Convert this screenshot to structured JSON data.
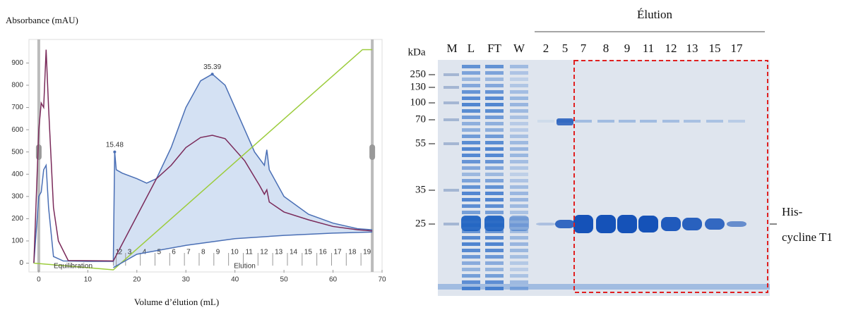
{
  "chart_data": {
    "type": "line",
    "ylabel": "Absorbance (mAU)",
    "xlabel": "Volume d’élution (mL)",
    "xlim": [
      -2,
      70
    ],
    "xticks": [
      0,
      10,
      20,
      30,
      40,
      50,
      60,
      70
    ],
    "ylim": [
      -30,
      990
    ],
    "yticks": [
      0,
      100,
      200,
      300,
      400,
      500,
      600,
      700,
      800,
      900
    ],
    "series": [
      {
        "color": "#4a6fb5",
        "x": [
          -1,
          0,
          0.5,
          1,
          1.5,
          2,
          3,
          5,
          10,
          15.2,
          15.48,
          15.8,
          17,
          20,
          22,
          24,
          27,
          30,
          33,
          35.39,
          38,
          41,
          44,
          46,
          46.5,
          47,
          50,
          55,
          60,
          65,
          68
        ],
        "values": [
          0,
          300,
          320,
          420,
          440,
          250,
          30,
          10,
          8,
          8,
          500,
          420,
          405,
          380,
          360,
          380,
          520,
          700,
          820,
          850,
          800,
          650,
          500,
          440,
          510,
          420,
          300,
          220,
          180,
          155,
          150
        ]
      },
      {
        "color": "#7a2a5a",
        "x": [
          -1,
          0,
          0.5,
          1,
          1.5,
          2,
          3,
          4,
          6,
          15.2,
          24,
          27,
          30,
          33,
          35.39,
          38,
          42,
          45,
          46,
          46.5,
          47,
          50,
          55,
          60,
          65,
          68
        ],
        "values": [
          0,
          600,
          720,
          700,
          960,
          700,
          250,
          100,
          12,
          10,
          380,
          440,
          520,
          565,
          575,
          560,
          460,
          350,
          310,
          330,
          275,
          230,
          195,
          165,
          150,
          145
        ]
      },
      {
        "color": "#9ccc3c",
        "x": [
          -1,
          15.2,
          66,
          68
        ],
        "values": [
          0,
          -30,
          960,
          960
        ]
      },
      {
        "color": "#4a6fb5",
        "x": [
          15.2,
          20,
          30,
          40,
          50,
          60,
          68
        ],
        "values": [
          -20,
          40,
          80,
          110,
          125,
          135,
          140
        ]
      }
    ],
    "annotations": [
      {
        "text": "35.39",
        "x": 35.39,
        "y": 850
      },
      {
        "text": "15.48",
        "x": 15.48,
        "y": 500
      }
    ],
    "phases": [
      {
        "text": "Equilibration",
        "x": 7
      },
      {
        "text": "Elution",
        "x": 42
      }
    ],
    "fractions": {
      "labels": [
        "1",
        "2",
        "3",
        "4",
        "5",
        "6",
        "7",
        "8",
        "9",
        "10",
        "11",
        "12",
        "13",
        "14",
        "15",
        "16",
        "17",
        "18",
        "19"
      ],
      "x": [
        15.2,
        15.8,
        17.7,
        20.7,
        23.7,
        26.7,
        29.7,
        32.7,
        35.7,
        38.7,
        41.7,
        44.7,
        47.7,
        50.7,
        53.7,
        56.7,
        59.7,
        62.7,
        65.7
      ]
    }
  },
  "gel": {
    "title": "Élution",
    "unit": "kDa",
    "lanes": [
      "M",
      "L",
      "FT",
      "W",
      "2",
      "5",
      "7",
      "8",
      "9",
      "11",
      "12",
      "13",
      "15",
      "17"
    ],
    "markers": [
      "250",
      "130",
      "100",
      "70",
      "55",
      "35",
      "25"
    ],
    "band_label": [
      "His-",
      "cycline T1"
    ]
  }
}
